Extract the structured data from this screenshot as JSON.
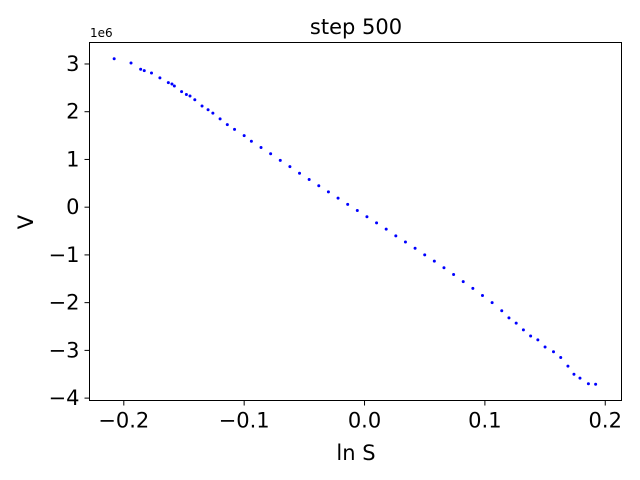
{
  "chart_data": {
    "type": "scatter",
    "title": "step 500",
    "xlabel": "ln S",
    "ylabel": "V",
    "y_offset_label": "1e6",
    "xlim": [
      -0.2285,
      0.2135
    ],
    "ylim": [
      -4.05,
      3.45
    ],
    "x_ticks": [
      -0.2,
      -0.1,
      0.0,
      0.1,
      0.2
    ],
    "x_tick_labels": [
      "−0.2",
      "−0.1",
      "0.0",
      "0.1",
      "0.2"
    ],
    "y_ticks": [
      -4,
      -3,
      -2,
      -1,
      0,
      1,
      2,
      3
    ],
    "y_tick_labels": [
      "−4",
      "−3",
      "−2",
      "−1",
      "0",
      "1",
      "2",
      "3"
    ],
    "grid": false,
    "point_color": "#0000ff",
    "series": [
      {
        "values_unit": "V ×1e6",
        "points": [
          [
            -0.208,
            3.11
          ],
          [
            -0.194,
            3.02
          ],
          [
            -0.186,
            2.89
          ],
          [
            -0.183,
            2.86
          ],
          [
            -0.177,
            2.81
          ],
          [
            -0.17,
            2.71
          ],
          [
            -0.163,
            2.61
          ],
          [
            -0.16,
            2.58
          ],
          [
            -0.158,
            2.54
          ],
          [
            -0.152,
            2.42
          ],
          [
            -0.148,
            2.36
          ],
          [
            -0.145,
            2.33
          ],
          [
            -0.141,
            2.25
          ],
          [
            -0.135,
            2.12
          ],
          [
            -0.13,
            2.04
          ],
          [
            -0.126,
            1.97
          ],
          [
            -0.12,
            1.85
          ],
          [
            -0.114,
            1.73
          ],
          [
            -0.108,
            1.63
          ],
          [
            -0.1,
            1.5
          ],
          [
            -0.094,
            1.38
          ],
          [
            -0.086,
            1.25
          ],
          [
            -0.078,
            1.12
          ],
          [
            -0.07,
            0.98
          ],
          [
            -0.062,
            0.85
          ],
          [
            -0.054,
            0.71
          ],
          [
            -0.046,
            0.58
          ],
          [
            -0.038,
            0.45
          ],
          [
            -0.03,
            0.32
          ],
          [
            -0.022,
            0.19
          ],
          [
            -0.014,
            0.06
          ],
          [
            -0.006,
            -0.07
          ],
          [
            0.002,
            -0.2
          ],
          [
            0.01,
            -0.33
          ],
          [
            0.018,
            -0.46
          ],
          [
            0.026,
            -0.6
          ],
          [
            0.034,
            -0.73
          ],
          [
            0.042,
            -0.86
          ],
          [
            0.05,
            -1.0
          ],
          [
            0.058,
            -1.13
          ],
          [
            0.066,
            -1.27
          ],
          [
            0.074,
            -1.41
          ],
          [
            0.082,
            -1.56
          ],
          [
            0.09,
            -1.7
          ],
          [
            0.098,
            -1.85
          ],
          [
            0.106,
            -2.0
          ],
          [
            0.114,
            -2.17
          ],
          [
            0.12,
            -2.32
          ],
          [
            0.126,
            -2.43
          ],
          [
            0.132,
            -2.57
          ],
          [
            0.138,
            -2.7
          ],
          [
            0.144,
            -2.78
          ],
          [
            0.15,
            -2.93
          ],
          [
            0.157,
            -3.03
          ],
          [
            0.163,
            -3.15
          ],
          [
            0.169,
            -3.33
          ],
          [
            0.174,
            -3.5
          ],
          [
            0.179,
            -3.58
          ],
          [
            0.186,
            -3.7
          ],
          [
            0.192,
            -3.71
          ]
        ]
      }
    ]
  }
}
